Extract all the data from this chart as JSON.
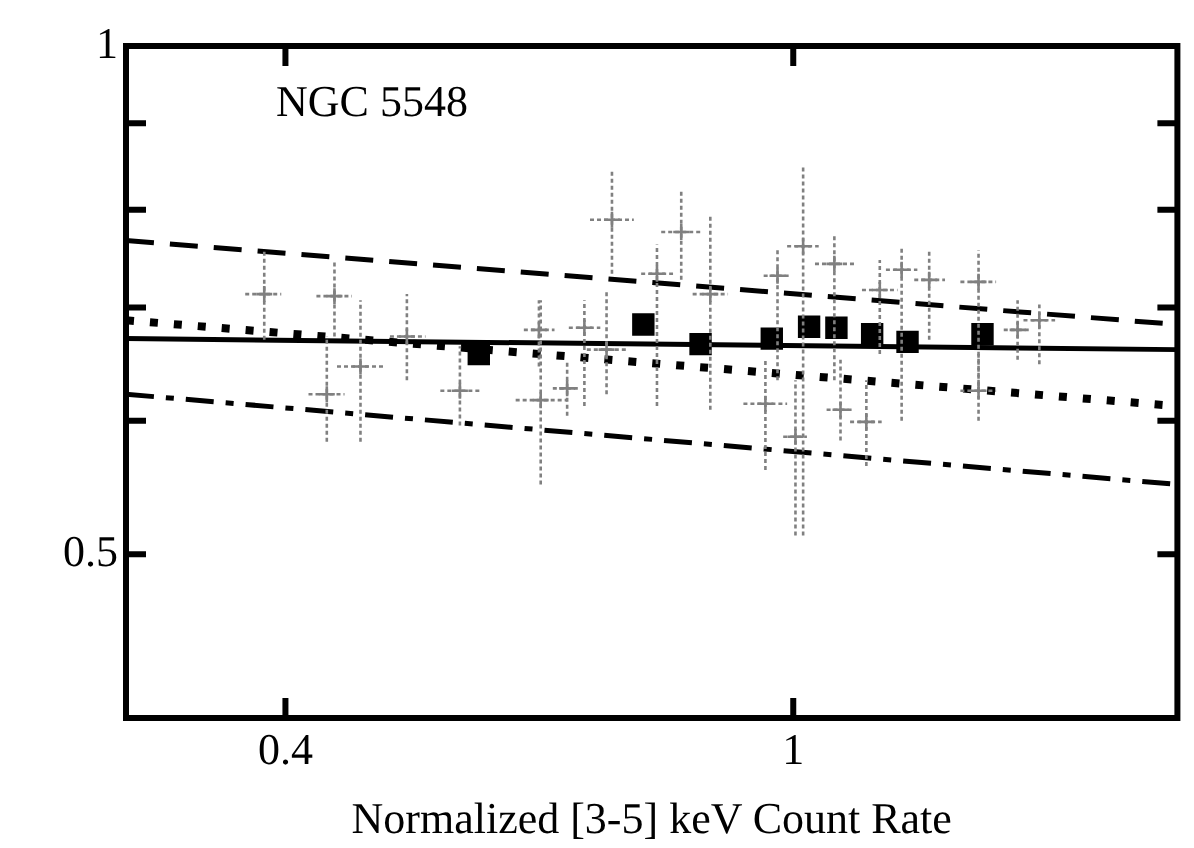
{
  "chart_data": {
    "type": "scatter",
    "xlabel": "Normalized [3-5] keV Count Rate",
    "annotations": [
      "NGC 5548"
    ],
    "log": "xy",
    "grid": false,
    "legend": false,
    "xlim": [
      0.3,
      2
    ],
    "xticks": [
      0.4,
      1
    ],
    "ylim": [
      0.4,
      1
    ],
    "yticks": [
      0.5,
      {
        "value": 0.6,
        "label": null
      },
      {
        "value": 0.7,
        "label": null
      },
      {
        "value": 0.8,
        "label": null
      },
      {
        "value": 0.9,
        "label": null
      },
      1
    ],
    "series": [
      {
        "type": "scatter",
        "marker": "cross",
        "color": "#808080",
        "x": [
          0.385,
          0.437,
          0.431,
          0.458,
          0.498,
          0.548,
          0.634,
          0.632,
          0.665,
          0.686,
          0.721,
          0.714,
          0.817,
          0.782,
          0.861,
          0.951,
          1.018,
          1.004,
          1.077,
          1.089,
          1.169,
          1.141,
          1.216,
          1.397,
          1.397,
          1.559,
          1.278,
          0.972,
          1.499
        ],
        "values": [
          0.713,
          0.711,
          0.622,
          0.646,
          0.673,
          0.625,
          0.617,
          0.679,
          0.627,
          0.681,
          0.789,
          0.661,
          0.776,
          0.733,
          0.713,
          0.614,
          0.761,
          0.587,
          0.743,
          0.609,
          0.717,
          0.599,
          0.737,
          0.725,
          0.625,
          0.688,
          0.727,
          0.731,
          0.679
        ],
        "xerrors": [
          [
            0.372,
            0.397
          ],
          [
            0.423,
            0.451
          ],
          [
            0.417,
            0.445
          ],
          [
            0.439,
            0.478
          ],
          [
            0.483,
            0.515
          ],
          [
            0.529,
            0.568
          ],
          [
            0.606,
            0.665
          ],
          [
            0.615,
            0.65
          ],
          [
            0.648,
            0.681
          ],
          [
            0.667,
            0.706
          ],
          [
            0.693,
            0.75
          ],
          [
            0.689,
            0.74
          ],
          [
            0.788,
            0.846
          ],
          [
            0.76,
            0.805
          ],
          [
            0.834,
            0.889
          ],
          [
            0.914,
            0.989
          ],
          [
            0.989,
            1.047
          ],
          [
            0.982,
            1.025
          ],
          [
            1.04,
            1.116
          ],
          [
            1.062,
            1.116
          ],
          [
            1.132,
            1.207
          ],
          [
            1.108,
            1.173
          ],
          [
            1.182,
            1.251
          ],
          [
            1.352,
            1.442
          ],
          [
            1.352,
            1.442
          ],
          [
            1.515,
            1.604
          ],
          [
            1.244,
            1.315
          ],
          [
            0.948,
            0.996
          ],
          [
            1.462,
            1.537
          ]
        ],
        "errors": [
          [
            0.67,
            0.757
          ],
          [
            0.673,
            0.747
          ],
          [
            0.583,
            0.673
          ],
          [
            0.583,
            0.707
          ],
          [
            0.634,
            0.713
          ],
          [
            0.596,
            0.664
          ],
          [
            0.55,
            0.707
          ],
          [
            0.646,
            0.707
          ],
          [
            0.604,
            0.652
          ],
          [
            0.612,
            0.707
          ],
          [
            0.733,
            0.844
          ],
          [
            0.622,
            0.717
          ],
          [
            0.727,
            0.822
          ],
          [
            0.612,
            0.763
          ],
          [
            0.609,
            0.793
          ],
          [
            0.561,
            0.652
          ],
          [
            0.513,
            0.849
          ],
          [
            0.513,
            0.634
          ],
          [
            0.634,
            0.774
          ],
          [
            0.584,
            0.652
          ],
          [
            0.657,
            0.747
          ],
          [
            0.564,
            0.634
          ],
          [
            0.6,
            0.761
          ],
          [
            0.625,
            0.757
          ],
          [
            0.6,
            0.657
          ],
          [
            0.648,
            0.703
          ],
          [
            0.67,
            0.757
          ],
          [
            0.634,
            0.757
          ],
          [
            0.652,
            0.707
          ]
        ]
      },
      {
        "type": "scatter",
        "marker": "square",
        "color": "#000000",
        "x": [
          0.567,
          0.763,
          0.846,
          0.962,
          1.029,
          1.081,
          1.153,
          1.229,
          1.407
        ],
        "values": [
          0.657,
          0.684,
          0.666,
          0.671,
          0.682,
          0.681,
          0.675,
          0.668,
          0.675
        ]
      },
      {
        "type": "line",
        "marker": "none",
        "color": "#000000",
        "line_style": "dashed",
        "x": [
          0.3,
          2
        ],
        "values": [
          0.767,
          0.684
        ]
      },
      {
        "type": "line",
        "marker": "none",
        "color": "#000000",
        "line_style": "solid",
        "x": [
          0.3,
          2
        ],
        "values": [
          0.671,
          0.661
        ]
      },
      {
        "type": "line",
        "marker": "none",
        "color": "#000000",
        "line_style": "dotted",
        "x": [
          0.3,
          2
        ],
        "values": [
          0.688,
          0.612
        ]
      },
      {
        "type": "line",
        "marker": "none",
        "color": "#000000",
        "line_style": "dashdot",
        "x": [
          0.3,
          2
        ],
        "values": [
          0.622,
          0.55
        ]
      }
    ]
  }
}
